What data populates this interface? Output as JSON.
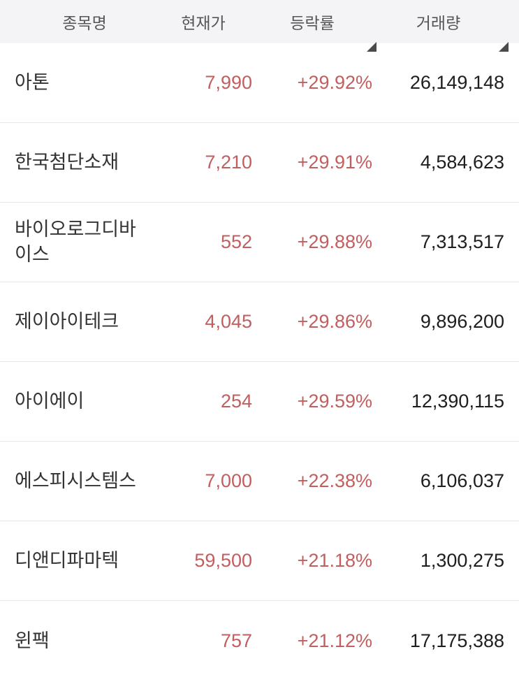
{
  "colors": {
    "up": "#c25e5e",
    "text": "#1e1e1e",
    "name": "#333333",
    "header_text": "#565656",
    "header_bg": "#f4f4f6",
    "divider": "#e8e8e8",
    "arrow": "#4a4a4a"
  },
  "table": {
    "columns": [
      {
        "key": "name",
        "label": "종목명",
        "sortable": false
      },
      {
        "key": "price",
        "label": "현재가",
        "sortable": false
      },
      {
        "key": "change",
        "label": "등락률",
        "sortable": true
      },
      {
        "key": "volume",
        "label": "거래량",
        "sortable": true
      }
    ],
    "rows": [
      {
        "name": "아톤",
        "price": "7,990",
        "change": "+29.92%",
        "volume": "26,149,148"
      },
      {
        "name": "한국첨단소재",
        "price": "7,210",
        "change": "+29.91%",
        "volume": "4,584,623"
      },
      {
        "name": "바이오로그디바이스",
        "price": "552",
        "change": "+29.88%",
        "volume": "7,313,517"
      },
      {
        "name": "제이아이테크",
        "price": "4,045",
        "change": "+29.86%",
        "volume": "9,896,200"
      },
      {
        "name": "아이에이",
        "price": "254",
        "change": "+29.59%",
        "volume": "12,390,115"
      },
      {
        "name": "에스피시스템스",
        "price": "7,000",
        "change": "+22.38%",
        "volume": "6,106,037"
      },
      {
        "name": "디앤디파마텍",
        "price": "59,500",
        "change": "+21.18%",
        "volume": "1,300,275"
      },
      {
        "name": "윈팩",
        "price": "757",
        "change": "+21.12%",
        "volume": "17,175,388"
      }
    ]
  }
}
